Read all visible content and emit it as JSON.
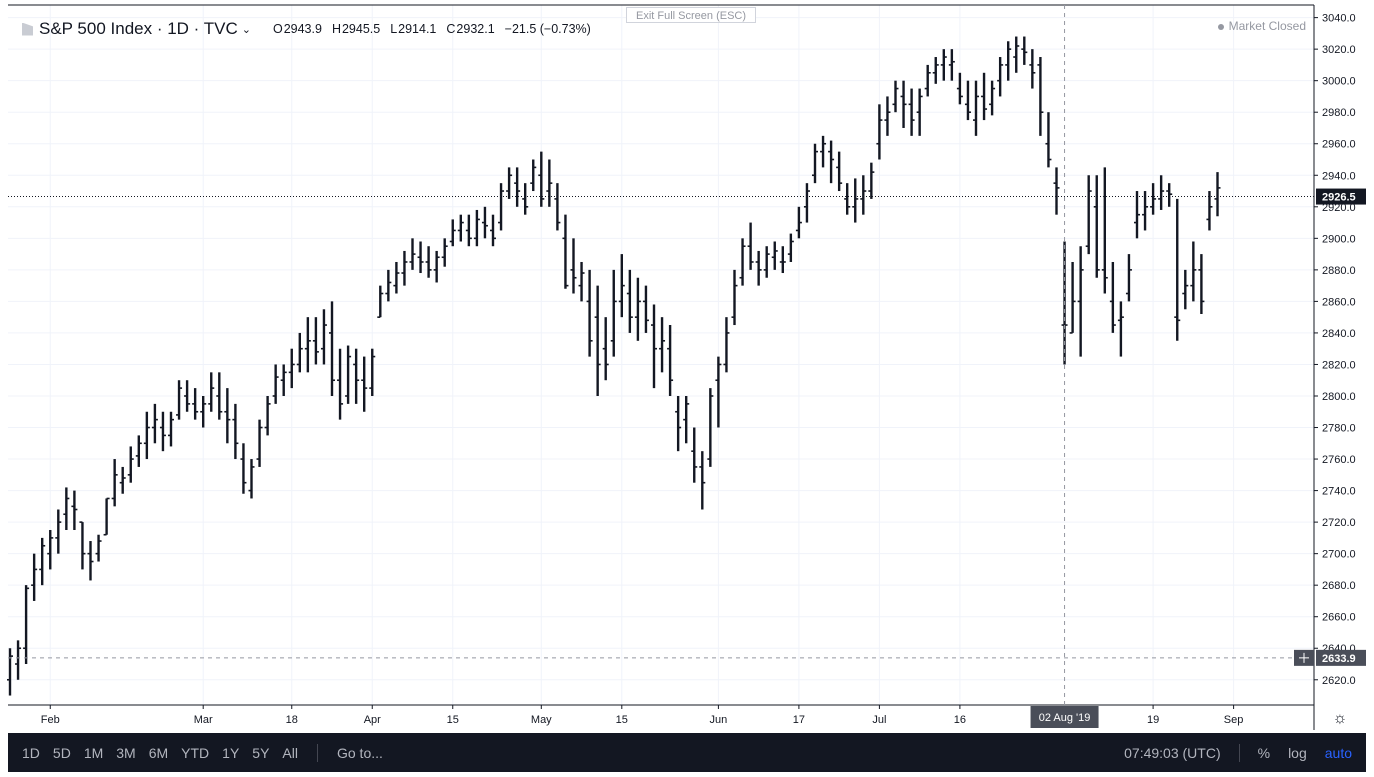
{
  "header": {
    "symbol": "S&P 500 Index · 1D · TVC",
    "chevron": "⌄",
    "open_label": "O",
    "open": "2943.9",
    "high_label": "H",
    "high": "2945.5",
    "low_label": "L",
    "low": "2914.1",
    "close_label": "C",
    "close": "2932.1",
    "change": "−21.5 (−0.73%)"
  },
  "exit_fullscreen": "Exit Full Screen (ESC)",
  "market_status": "Market Closed",
  "price_tags": {
    "last": "2926.5",
    "cursor": "2633.9"
  },
  "crosshair_date": "02 Aug '19",
  "bottom_bar": {
    "ranges": [
      "1D",
      "5D",
      "1M",
      "3M",
      "6M",
      "YTD",
      "1Y",
      "5Y",
      "All"
    ],
    "goto": "Go to...",
    "time": "07:49:03 (UTC)",
    "percent": "%",
    "log": "log",
    "auto": "auto"
  },
  "chart_data": {
    "type": "ohlc",
    "ylim": [
      2604,
      3048
    ],
    "y_ticks": [
      2620,
      2640,
      2660,
      2680,
      2700,
      2720,
      2740,
      2760,
      2780,
      2800,
      2820,
      2840,
      2860,
      2880,
      2900,
      2920,
      2940,
      2960,
      2980,
      3000,
      3020,
      3040
    ],
    "x_ticks": [
      {
        "label": "Feb",
        "index": 5
      },
      {
        "label": "Mar",
        "index": 24
      },
      {
        "label": "18",
        "index": 35
      },
      {
        "label": "Apr",
        "index": 45
      },
      {
        "label": "15",
        "index": 55
      },
      {
        "label": "May",
        "index": 66
      },
      {
        "label": "15",
        "index": 76
      },
      {
        "label": "Jun",
        "index": 88
      },
      {
        "label": "17",
        "index": 98
      },
      {
        "label": "Jul",
        "index": 108
      },
      {
        "label": "16",
        "index": 118
      },
      {
        "label": "Sep",
        "index": 152
      },
      {
        "label": "19",
        "index": 142
      }
    ],
    "last_price": 2926.5,
    "crosshair_price": 2633.9,
    "crosshair_index": 131,
    "colors": {
      "bar": "#131722",
      "grid": "#f0f3fa",
      "text": "#131722",
      "axis_text": "#131722"
    },
    "bars": [
      [
        2620,
        2640,
        2610,
        2635
      ],
      [
        2630,
        2645,
        2620,
        2640
      ],
      [
        2640,
        2680,
        2630,
        2678
      ],
      [
        2680,
        2700,
        2670,
        2690
      ],
      [
        2690,
        2710,
        2680,
        2705
      ],
      [
        2700,
        2715,
        2690,
        2710
      ],
      [
        2710,
        2728,
        2700,
        2720
      ],
      [
        2725,
        2742,
        2715,
        2735
      ],
      [
        2730,
        2740,
        2715,
        2728
      ],
      [
        2720,
        2720,
        2690,
        2700
      ],
      [
        2700,
        2708,
        2683,
        2695
      ],
      [
        2700,
        2712,
        2695,
        2708
      ],
      [
        2712,
        2735,
        2712,
        2735
      ],
      [
        2735,
        2760,
        2730,
        2750
      ],
      [
        2745,
        2755,
        2738,
        2748
      ],
      [
        2750,
        2768,
        2745,
        2760
      ],
      [
        2762,
        2775,
        2755,
        2770
      ],
      [
        2770,
        2790,
        2760,
        2780
      ],
      [
        2780,
        2795,
        2770,
        2785
      ],
      [
        2780,
        2790,
        2765,
        2775
      ],
      [
        2775,
        2790,
        2768,
        2785
      ],
      [
        2788,
        2810,
        2785,
        2805
      ],
      [
        2800,
        2810,
        2790,
        2795
      ],
      [
        2795,
        2805,
        2785,
        2790
      ],
      [
        2790,
        2800,
        2780,
        2795
      ],
      [
        2795,
        2815,
        2790,
        2805
      ],
      [
        2800,
        2815,
        2785,
        2790
      ],
      [
        2790,
        2805,
        2770,
        2785
      ],
      [
        2785,
        2795,
        2760,
        2770
      ],
      [
        2760,
        2770,
        2738,
        2745
      ],
      [
        2740,
        2760,
        2735,
        2755
      ],
      [
        2760,
        2785,
        2755,
        2780
      ],
      [
        2780,
        2800,
        2775,
        2795
      ],
      [
        2800,
        2820,
        2795,
        2812
      ],
      [
        2810,
        2820,
        2800,
        2815
      ],
      [
        2815,
        2830,
        2805,
        2820
      ],
      [
        2820,
        2840,
        2815,
        2830
      ],
      [
        2830,
        2850,
        2815,
        2835
      ],
      [
        2835,
        2850,
        2820,
        2828
      ],
      [
        2830,
        2855,
        2820,
        2845
      ],
      [
        2840,
        2860,
        2800,
        2810
      ],
      [
        2810,
        2830,
        2785,
        2795
      ],
      [
        2800,
        2832,
        2795,
        2825
      ],
      [
        2820,
        2830,
        2795,
        2810
      ],
      [
        2810,
        2825,
        2790,
        2805
      ],
      [
        2805,
        2830,
        2800,
        2825
      ],
      [
        2850,
        2870,
        2850,
        2865
      ],
      [
        2865,
        2880,
        2860,
        2872
      ],
      [
        2870,
        2885,
        2865,
        2878
      ],
      [
        2878,
        2892,
        2870,
        2885
      ],
      [
        2885,
        2900,
        2880,
        2890
      ],
      [
        2888,
        2898,
        2878,
        2885
      ],
      [
        2885,
        2895,
        2875,
        2880
      ],
      [
        2880,
        2892,
        2872,
        2888
      ],
      [
        2888,
        2900,
        2882,
        2895
      ],
      [
        2898,
        2912,
        2895,
        2905
      ],
      [
        2905,
        2915,
        2898,
        2910
      ],
      [
        2905,
        2915,
        2895,
        2900
      ],
      [
        2900,
        2918,
        2895,
        2912
      ],
      [
        2910,
        2920,
        2900,
        2908
      ],
      [
        2905,
        2915,
        2895,
        2900
      ],
      [
        2910,
        2935,
        2905,
        2930
      ],
      [
        2930,
        2945,
        2925,
        2940
      ],
      [
        2935,
        2945,
        2920,
        2930
      ],
      [
        2925,
        2935,
        2915,
        2920
      ],
      [
        2935,
        2950,
        2930,
        2945
      ],
      [
        2940,
        2955,
        2920,
        2925
      ],
      [
        2930,
        2950,
        2920,
        2935
      ],
      [
        2925,
        2935,
        2905,
        2910
      ],
      [
        2900,
        2915,
        2868,
        2870
      ],
      [
        2880,
        2900,
        2865,
        2875
      ],
      [
        2870,
        2885,
        2860,
        2878
      ],
      [
        2860,
        2880,
        2825,
        2835
      ],
      [
        2850,
        2870,
        2800,
        2820
      ],
      [
        2830,
        2850,
        2810,
        2820
      ],
      [
        2835,
        2880,
        2825,
        2860
      ],
      [
        2860,
        2890,
        2850,
        2870
      ],
      [
        2865,
        2880,
        2840,
        2850
      ],
      [
        2850,
        2875,
        2835,
        2860
      ],
      [
        2860,
        2870,
        2840,
        2848
      ],
      [
        2845,
        2858,
        2805,
        2830
      ],
      [
        2830,
        2850,
        2815,
        2835
      ],
      [
        2830,
        2845,
        2800,
        2810
      ],
      [
        2790,
        2800,
        2765,
        2780
      ],
      [
        2785,
        2800,
        2770,
        2795
      ],
      [
        2765,
        2780,
        2745,
        2755
      ],
      [
        2755,
        2765,
        2728,
        2745
      ],
      [
        2760,
        2805,
        2755,
        2800
      ],
      [
        2810,
        2825,
        2780,
        2820
      ],
      [
        2820,
        2850,
        2815,
        2840
      ],
      [
        2850,
        2880,
        2845,
        2870
      ],
      [
        2875,
        2900,
        2870,
        2895
      ],
      [
        2895,
        2910,
        2880,
        2885
      ],
      [
        2885,
        2892,
        2870,
        2880
      ],
      [
        2880,
        2895,
        2875,
        2890
      ],
      [
        2888,
        2898,
        2880,
        2892
      ],
      [
        2885,
        2895,
        2878,
        2885
      ],
      [
        2890,
        2903,
        2885,
        2898
      ],
      [
        2905,
        2920,
        2900,
        2910
      ],
      [
        2920,
        2935,
        2910,
        2930
      ],
      [
        2940,
        2960,
        2935,
        2955
      ],
      [
        2955,
        2965,
        2945,
        2960
      ],
      [
        2955,
        2962,
        2935,
        2950
      ],
      [
        2945,
        2955,
        2930,
        2935
      ],
      [
        2925,
        2935,
        2915,
        2920
      ],
      [
        2920,
        2938,
        2910,
        2925
      ],
      [
        2925,
        2940,
        2915,
        2930
      ],
      [
        2930,
        2948,
        2925,
        2942
      ],
      [
        2960,
        2985,
        2950,
        2975
      ],
      [
        2975,
        2990,
        2965,
        2980
      ],
      [
        2985,
        3000,
        2980,
        2995
      ],
      [
        2990,
        3000,
        2970,
        2985
      ],
      [
        2985,
        2995,
        2965,
        2975
      ],
      [
        2980,
        2995,
        2965,
        2990
      ],
      [
        2995,
        3010,
        2990,
        3005
      ],
      [
        3005,
        3015,
        2998,
        3010
      ],
      [
        3010,
        3020,
        3000,
        3015
      ],
      [
        3010,
        3020,
        3000,
        3012
      ],
      [
        2995,
        3005,
        2985,
        2990
      ],
      [
        2985,
        3000,
        2975,
        2980
      ],
      [
        2975,
        3000,
        2965,
        2990
      ],
      [
        2990,
        3005,
        2975,
        2982
      ],
      [
        2985,
        3000,
        2978,
        2995
      ],
      [
        3000,
        3015,
        2990,
        3010
      ],
      [
        3010,
        3025,
        3000,
        3020
      ],
      [
        3015,
        3028,
        3005,
        3022
      ],
      [
        3020,
        3028,
        3010,
        3018
      ],
      [
        3010,
        3020,
        2995,
        3005
      ],
      [
        3010,
        3015,
        2965,
        2980
      ],
      [
        2960,
        2980,
        2945,
        2950
      ],
      [
        2935,
        2945,
        2915,
        2932
      ],
      [
        2845,
        2898,
        2820,
        2845
      ],
      [
        2840,
        2885,
        2840,
        2860
      ],
      [
        2860,
        2895,
        2825,
        2880
      ],
      [
        2895,
        2940,
        2890,
        2930
      ],
      [
        2920,
        2940,
        2875,
        2880
      ],
      [
        2880,
        2945,
        2865,
        2875
      ],
      [
        2860,
        2885,
        2840,
        2845
      ],
      [
        2848,
        2860,
        2825,
        2850
      ],
      [
        2865,
        2890,
        2860,
        2880
      ],
      [
        2910,
        2930,
        2900,
        2915
      ],
      [
        2915,
        2930,
        2905,
        2920
      ],
      [
        2920,
        2935,
        2915,
        2925
      ],
      [
        2925,
        2940,
        2918,
        2930
      ],
      [
        2930,
        2935,
        2920,
        2928
      ],
      [
        2850,
        2925,
        2835,
        2848
      ],
      [
        2865,
        2880,
        2855,
        2870
      ],
      [
        2870,
        2898,
        2860,
        2880
      ],
      [
        2880,
        2890,
        2852,
        2860
      ],
      [
        2912,
        2930,
        2905,
        2920
      ],
      [
        2925,
        2942,
        2914,
        2932
      ]
    ]
  }
}
